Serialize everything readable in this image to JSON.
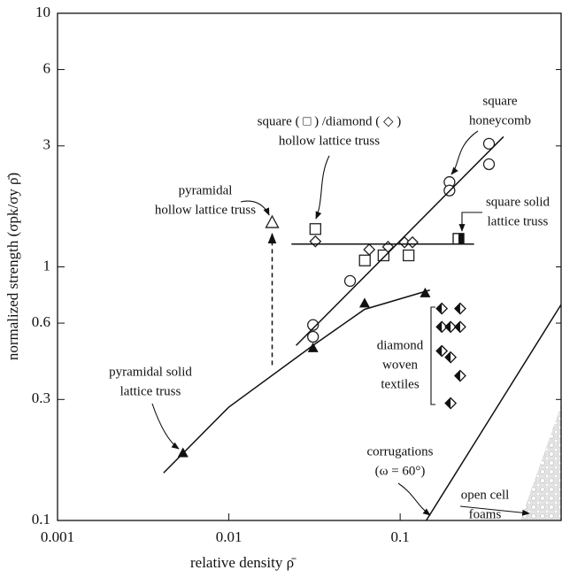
{
  "chart_data": {
    "type": "scatter",
    "x_label": "relative density ρ̄",
    "y_label": "normalized strength (σpk/σy ρ̄)",
    "xscale": "log",
    "yscale": "log",
    "xlim": [
      0.001,
      0.87
    ],
    "ylim": [
      0.1,
      10
    ],
    "xticks": [
      0.001,
      0.01,
      0.1
    ],
    "yticks": [
      0.1,
      0.3,
      0.6,
      1,
      3,
      6,
      10
    ],
    "series": [
      {
        "marker": "open-square",
        "color": "#222",
        "x": [
          0.032,
          0.0622,
          0.08,
          0.112
        ],
        "values": [
          1.41,
          1.06,
          1.11,
          1.11
        ]
      },
      {
        "marker": "open-diamond",
        "color": "#222",
        "x": [
          0.032,
          0.066,
          0.085,
          0.106,
          0.118
        ],
        "values": [
          1.26,
          1.17,
          1.2,
          1.25,
          1.25
        ]
      },
      {
        "marker": "open-circle",
        "color": "#222",
        "x": [
          0.031,
          0.031,
          0.051,
          0.194,
          0.194,
          0.33,
          0.33
        ],
        "values": [
          0.59,
          0.53,
          0.88,
          2.16,
          2.0,
          3.06,
          2.54
        ]
      },
      {
        "marker": "filled-triangle",
        "color": "#111",
        "x": [
          0.0054,
          0.031,
          0.062,
          0.14
        ],
        "values": [
          0.185,
          0.48,
          0.72,
          0.79
        ]
      },
      {
        "marker": "open-triangle",
        "color": "#222",
        "x": [
          0.0179
        ],
        "values": [
          1.5
        ]
      },
      {
        "marker": "half-square",
        "color": "#111",
        "x": [
          0.219
        ],
        "values": [
          1.29
        ]
      },
      {
        "marker": "half-diamond",
        "color": "#111",
        "x": [
          0.175,
          0.224,
          0.175,
          0.197,
          0.224,
          0.175,
          0.197,
          0.224,
          0.197
        ],
        "values": [
          0.685,
          0.685,
          0.58,
          0.58,
          0.58,
          0.466,
          0.44,
          0.372,
          0.29
        ]
      },
      {
        "marker": "line",
        "color": "#111",
        "x": [
          0.0247,
          0.401
        ],
        "values": [
          0.49,
          3.26
        ]
      },
      {
        "marker": "line",
        "color": "#111",
        "x": [
          0.0232,
          0.27
        ],
        "values": [
          1.23,
          1.23
        ]
      },
      {
        "marker": "line",
        "color": "#111",
        "x": [
          0.00416,
          0.01,
          0.031,
          0.062,
          0.149
        ],
        "values": [
          0.154,
          0.28,
          0.49,
          0.68,
          0.81
        ]
      },
      {
        "marker": "line",
        "color": "#111",
        "x": [
          0.142,
          0.87
        ],
        "values": [
          0.1,
          0.71
        ]
      },
      {
        "marker": "dashed-arrow",
        "color": "#111",
        "x": [
          0.0179,
          0.0179
        ],
        "values": [
          0.41,
          1.35
        ]
      }
    ],
    "annotations": [
      {
        "lines": [
          "square ( □ ) /diamond ( ◇ )",
          "hollow lattice truss"
        ]
      },
      {
        "lines": [
          "square",
          "honeycomb"
        ]
      },
      {
        "lines": [
          "pyramidal",
          "hollow lattice truss"
        ]
      },
      {
        "lines": [
          "square solid",
          "lattice truss"
        ]
      },
      {
        "lines": [
          "diamond",
          "woven",
          "textiles"
        ]
      },
      {
        "lines": [
          "pyramidal solid",
          "lattice truss"
        ]
      },
      {
        "lines": [
          "corrugations",
          "(ω = 60°)"
        ]
      },
      {
        "lines": [
          "open cell",
          "foams"
        ]
      }
    ]
  }
}
